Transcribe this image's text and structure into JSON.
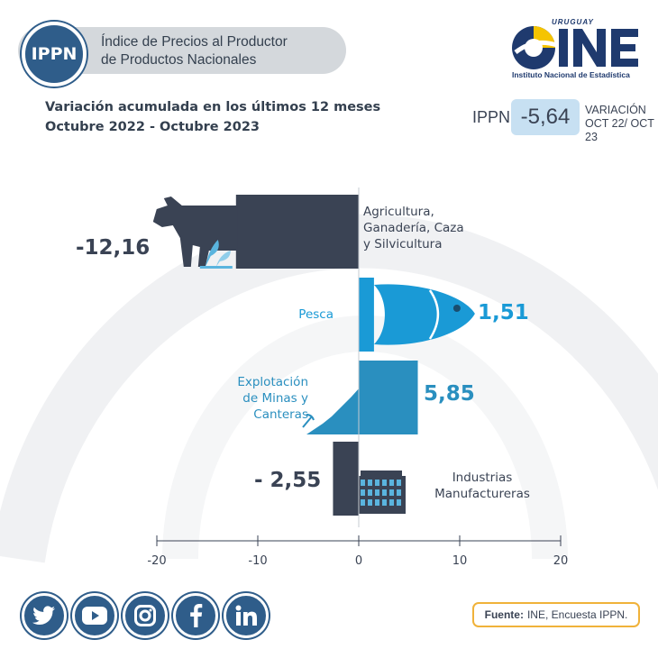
{
  "header": {
    "badge": "IPPN",
    "title_line1": "Índice de Precios al Productor",
    "title_line2": "de Productos Nacionales",
    "subtitle_line1": "Variación acumulada en los últimos 12 meses",
    "subtitle_line2": "Octubre 2022 - Octubre 2023"
  },
  "logo": {
    "top_text": "URUGUAY",
    "caption": "Instituto Nacional de Estadística",
    "brand_color": "#1f3a6e",
    "accent_color": "#f5c400"
  },
  "headline": {
    "label": "IPPN",
    "value": "-5,64",
    "variation_label": "VARIACIÓN",
    "period": "OCT 22/ OCT 23"
  },
  "chart_data": {
    "type": "bar",
    "orientation": "horizontal",
    "categories": [
      "Agricultura, Ganadería, Caza y Silvicultura",
      "Pesca",
      "Explotación de Minas y Canteras",
      "Industrias Manufactureras"
    ],
    "category_lines": [
      [
        "Agricultura,",
        "Ganadería, Caza",
        "y Silvicultura"
      ],
      [
        "Pesca"
      ],
      [
        "Explotación",
        "de Minas y",
        "Canteras"
      ],
      [
        "Industrias",
        "Manufactureras"
      ]
    ],
    "values": [
      -12.16,
      1.51,
      5.85,
      -2.55
    ],
    "value_labels": [
      "-12,16",
      "1,51",
      "5,85",
      "- 2,55"
    ],
    "colors": [
      "#3a4354",
      "#1a9ad6",
      "#2a8fbf",
      "#3a4354"
    ],
    "icons": [
      "cow-icon",
      "fish-icon",
      "mining-icon",
      "factory-icon"
    ],
    "xlim": [
      -20,
      20
    ],
    "xticks": [
      -20,
      -10,
      0,
      10,
      20
    ],
    "grid": false
  },
  "socials": [
    {
      "name": "twitter-icon",
      "glyph": "🐦"
    },
    {
      "name": "youtube-icon",
      "glyph": "▶"
    },
    {
      "name": "instagram-icon",
      "glyph": "◎"
    },
    {
      "name": "facebook-icon",
      "glyph": "f"
    },
    {
      "name": "linkedin-icon",
      "glyph": "in"
    }
  ],
  "source": {
    "label": "Fuente:",
    "text": "INE, Encuesta IPPN."
  }
}
